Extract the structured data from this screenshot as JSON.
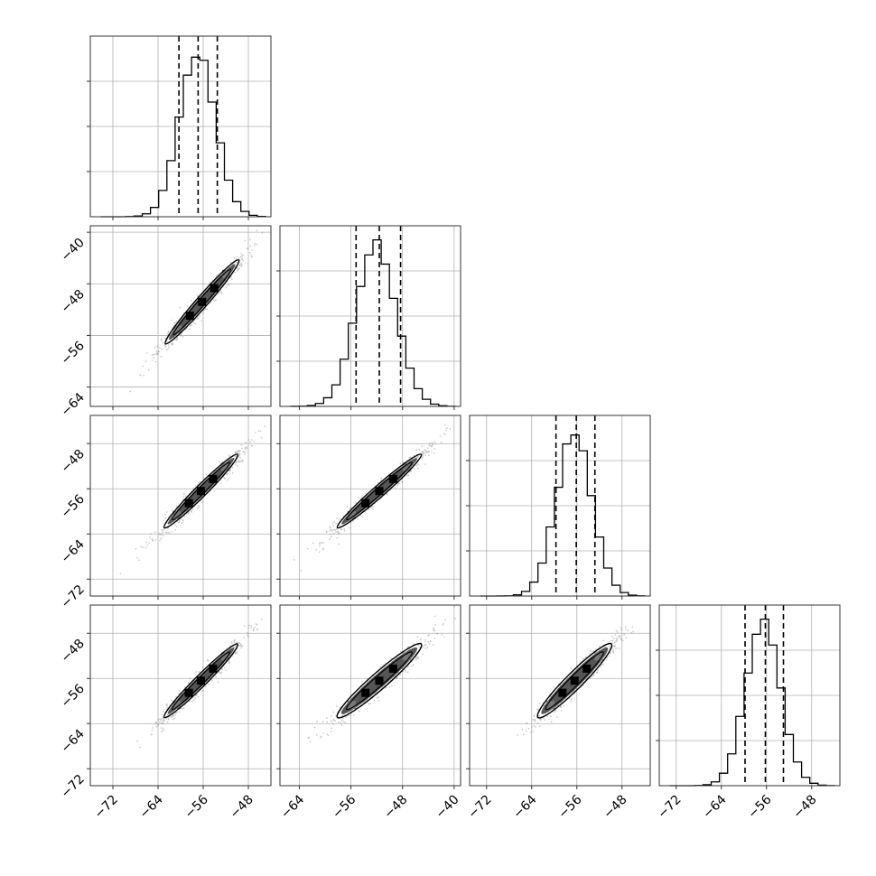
{
  "chart_data": {
    "type": "corner",
    "grid": true,
    "title": "",
    "n_params": 4,
    "params": [
      {
        "range": [
          -76,
          -44
        ],
        "ticks": [
          -72,
          -64,
          -56,
          -48
        ],
        "hist": {
          "mu": -57,
          "sigma": 3.2,
          "quantiles": [
            -60.3,
            -56.9,
            -53.5
          ]
        }
      },
      {
        "range": [
          -67,
          -39
        ],
        "ticks": [
          -64,
          -56,
          -48,
          -40
        ],
        "hist": {
          "mu": -52.1,
          "sigma": 3.1,
          "quantiles": [
            -55.2,
            -51.6,
            -48.3
          ]
        }
      },
      {
        "range": [
          -75,
          -43
        ],
        "ticks": [
          -72,
          -64,
          -56,
          -48
        ],
        "hist": {
          "mu": -56.5,
          "sigma": 3.2,
          "quantiles": [
            -59.7,
            -56.1,
            -52.8
          ]
        }
      },
      {
        "range": [
          -75,
          -43
        ],
        "ticks": [
          -72,
          -64,
          -56,
          -48
        ],
        "hist": {
          "mu": -56.6,
          "sigma": 3.1,
          "quantiles": [
            -59.8,
            -56.2,
            -53.0
          ]
        }
      }
    ],
    "pair_panels": [
      {
        "row": 1,
        "col": 0,
        "from": [
          -71,
          -65.5
        ],
        "to": [
          -46,
          -40.5
        ],
        "center": [
          -56.2,
          -50.8
        ],
        "halfwidth": 0.9
      },
      {
        "row": 2,
        "col": 0,
        "from": [
          -71,
          -71
        ],
        "to": [
          -46,
          -46
        ],
        "center": [
          -56.4,
          -56.4
        ],
        "halfwidth": 0.9
      },
      {
        "row": 2,
        "col": 1,
        "from": [
          -66,
          -71
        ],
        "to": [
          -41,
          -46
        ],
        "center": [
          -51.6,
          -56.4
        ],
        "halfwidth": 0.9
      },
      {
        "row": 3,
        "col": 0,
        "from": [
          -71,
          -71
        ],
        "to": [
          -46,
          -46
        ],
        "center": [
          -56.4,
          -56.4
        ],
        "halfwidth": 0.9
      },
      {
        "row": 3,
        "col": 1,
        "from": [
          -66,
          -71
        ],
        "to": [
          -41,
          -46
        ],
        "center": [
          -51.6,
          -56.4
        ],
        "halfwidth": 1.3
      },
      {
        "row": 3,
        "col": 2,
        "from": [
          -71,
          -71
        ],
        "to": [
          -46,
          -46
        ],
        "center": [
          -56.4,
          -56.4
        ],
        "halfwidth": 1.3
      }
    ]
  }
}
